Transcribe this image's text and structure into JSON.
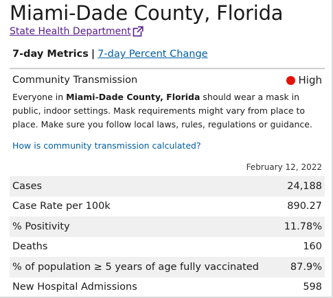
{
  "header": {
    "title": "Miami-Dade County, Florida",
    "health_dept_link": "State Health Department"
  },
  "metrics_nav": {
    "active_label": "7-day Metrics",
    "separator": "|",
    "alt_link": "7-day Percent Change"
  },
  "community_transmission": {
    "label": "Community Transmission",
    "level": "High",
    "level_color": "#e3120b",
    "description_prefix": "Everyone in ",
    "description_bold": "Miami-Dade County, Florida",
    "description_suffix": " should wear a mask in public, indoor settings. Mask requirements might vary from place to place. Make sure you follow local laws, rules, regulations or guidance.",
    "how_link": "How is community transmission calculated?"
  },
  "metrics": {
    "date": "February 12, 2022",
    "rows": [
      {
        "label": "Cases",
        "value": "24,188"
      },
      {
        "label": "Case Rate per 100k",
        "value": "890.27"
      },
      {
        "label": "% Positivity",
        "value": "11.78%"
      },
      {
        "label": "Deaths",
        "value": "160"
      },
      {
        "label": "% of population ≥ 5 years of age fully vaccinated",
        "value": "87.9%"
      },
      {
        "label": "New Hospital Admissions",
        "value": "598"
      }
    ]
  },
  "colors": {
    "link": "#005ea2",
    "visited_link": "#551a8b",
    "row_shade": "#f0f0f0"
  }
}
